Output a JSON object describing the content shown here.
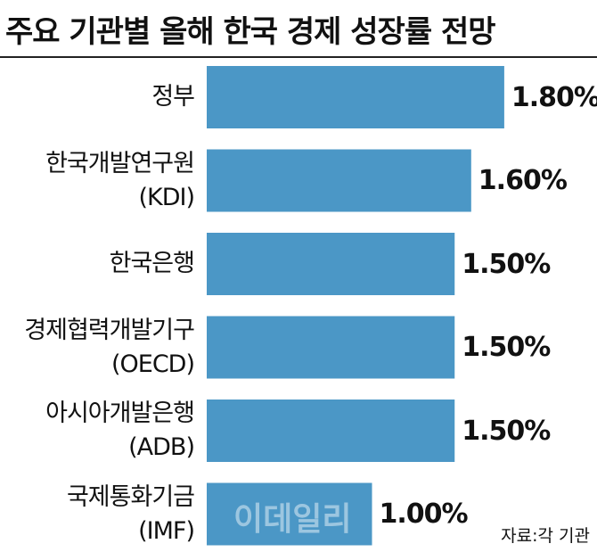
{
  "chart_data": {
    "type": "bar",
    "orientation": "horizontal",
    "title": "주요 기관별 올해 한국 경제 성장률 전망",
    "categories": [
      "정부",
      "한국개발연구원\n(KDI)",
      "한국은행",
      "경제협력개발기구\n(OECD)",
      "아시아개발은행\n(ADB)",
      "국제통화기금\n(IMF)"
    ],
    "values": [
      1.8,
      1.6,
      1.5,
      1.5,
      1.5,
      1.0
    ],
    "value_labels": [
      "1.80%",
      "1.60%",
      "1.50%",
      "1.50%",
      "1.50%",
      "1.00%"
    ],
    "color": "#4b97c6",
    "source": "자료:각 기관",
    "watermark": "이데일리"
  }
}
